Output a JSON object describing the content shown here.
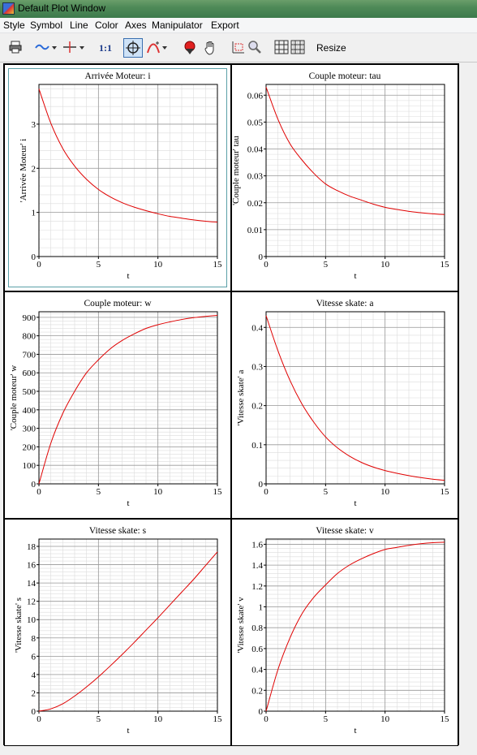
{
  "window": {
    "title": "Default Plot Window"
  },
  "menubar": {
    "items": [
      "Style",
      "Symbol",
      "Line",
      "Color",
      "Axes",
      "Manipulator",
      "Export"
    ]
  },
  "toolbar": {
    "resize_label": "Resize",
    "one_to_one_label": "1:1",
    "icons": [
      "printer-icon",
      "line-style-icon",
      "symbol-icon",
      "one-to-one-icon",
      "zoom-target-icon",
      "curve-select-icon",
      "color-drop-icon",
      "hand-pan-icon",
      "zoom-box-icon",
      "magnifier-icon",
      "grid-icon",
      "grid-fine-icon"
    ]
  },
  "plots": [
    {
      "title": "Arrivée Moteur: i",
      "xlabel": "t",
      "ylabel": "'Arrivée Moteur' i",
      "selected": true,
      "chart_data": {
        "type": "line",
        "xlim": [
          0,
          15
        ],
        "ylim": [
          0,
          3.9
        ],
        "xticks": [
          0,
          5,
          10,
          15
        ],
        "yticks": [
          0,
          1,
          2,
          3
        ],
        "x": [
          0,
          1,
          2,
          3,
          4,
          5,
          6,
          7,
          8,
          9,
          10,
          11,
          12,
          13,
          14,
          15
        ],
        "y": [
          3.8,
          3.02,
          2.45,
          2.05,
          1.75,
          1.52,
          1.35,
          1.22,
          1.12,
          1.04,
          0.97,
          0.91,
          0.87,
          0.83,
          0.8,
          0.78
        ]
      }
    },
    {
      "title": "Couple moteur: tau",
      "xlabel": "t",
      "ylabel": "'Couple moteur' tau",
      "selected": false,
      "chart_data": {
        "type": "line",
        "xlim": [
          0,
          15
        ],
        "ylim": [
          0,
          0.064
        ],
        "xticks": [
          0,
          5,
          10,
          15
        ],
        "yticks": [
          0,
          0.01,
          0.02,
          0.03,
          0.04,
          0.05,
          0.06
        ],
        "x": [
          0,
          1,
          2,
          3,
          4,
          5,
          6,
          7,
          8,
          9,
          10,
          11,
          12,
          13,
          14,
          15
        ],
        "y": [
          0.063,
          0.051,
          0.042,
          0.036,
          0.031,
          0.027,
          0.0245,
          0.0225,
          0.021,
          0.0195,
          0.0183,
          0.0175,
          0.0168,
          0.0163,
          0.0159,
          0.0156
        ]
      }
    },
    {
      "title": "Couple moteur: w",
      "xlabel": "t",
      "ylabel": "'Couple moteur' w",
      "selected": false,
      "chart_data": {
        "type": "line",
        "xlim": [
          0,
          15
        ],
        "ylim": [
          0,
          930
        ],
        "xticks": [
          0,
          5,
          10,
          15
        ],
        "yticks": [
          0,
          100,
          200,
          300,
          400,
          500,
          600,
          700,
          800,
          900
        ],
        "x": [
          0,
          1,
          2,
          3,
          4,
          5,
          6,
          7,
          8,
          9,
          10,
          11,
          12,
          13,
          14,
          15
        ],
        "y": [
          0,
          220,
          380,
          500,
          600,
          670,
          730,
          775,
          810,
          840,
          860,
          875,
          888,
          898,
          905,
          910
        ]
      }
    },
    {
      "title": "Vitesse skate: a",
      "xlabel": "t",
      "ylabel": "'Vitesse skate' a",
      "selected": false,
      "chart_data": {
        "type": "line",
        "xlim": [
          0,
          15
        ],
        "ylim": [
          0,
          0.44
        ],
        "xticks": [
          0,
          5,
          10,
          15
        ],
        "yticks": [
          0,
          0.1,
          0.2,
          0.3,
          0.4
        ],
        "x": [
          0,
          1,
          2,
          3,
          4,
          5,
          6,
          7,
          8,
          9,
          10,
          11,
          12,
          13,
          14,
          15
        ],
        "y": [
          0.43,
          0.34,
          0.265,
          0.205,
          0.158,
          0.12,
          0.092,
          0.071,
          0.055,
          0.043,
          0.034,
          0.027,
          0.021,
          0.016,
          0.012,
          0.009
        ]
      }
    },
    {
      "title": "Vitesse skate: s",
      "xlabel": "t",
      "ylabel": "'Vitesse skate' s",
      "selected": false,
      "chart_data": {
        "type": "line",
        "xlim": [
          0,
          15
        ],
        "ylim": [
          0,
          18.8
        ],
        "xticks": [
          0,
          5,
          10,
          15
        ],
        "yticks": [
          0,
          2,
          4,
          6,
          8,
          10,
          12,
          14,
          16,
          18
        ],
        "x": [
          0,
          1,
          2,
          3,
          4,
          5,
          6,
          7,
          8,
          9,
          10,
          11,
          12,
          13,
          14,
          15
        ],
        "y": [
          0,
          0.25,
          0.8,
          1.65,
          2.65,
          3.75,
          4.95,
          6.2,
          7.5,
          8.85,
          10.2,
          11.6,
          13.0,
          14.4,
          15.9,
          17.4
        ]
      }
    },
    {
      "title": "Vitesse skate: v",
      "xlabel": "t",
      "ylabel": "'Vitesse skate' v",
      "selected": false,
      "chart_data": {
        "type": "line",
        "xlim": [
          0,
          15
        ],
        "ylim": [
          0,
          1.65
        ],
        "xticks": [
          0,
          5,
          10,
          15
        ],
        "yticks": [
          0,
          0.2,
          0.4,
          0.6,
          0.8,
          1.0,
          1.2,
          1.4,
          1.6
        ],
        "x": [
          0,
          1,
          2,
          3,
          4,
          5,
          6,
          7,
          8,
          9,
          10,
          11,
          12,
          13,
          14,
          15
        ],
        "y": [
          0,
          0.4,
          0.7,
          0.93,
          1.09,
          1.21,
          1.32,
          1.4,
          1.46,
          1.51,
          1.55,
          1.57,
          1.59,
          1.605,
          1.615,
          1.62
        ]
      }
    }
  ]
}
